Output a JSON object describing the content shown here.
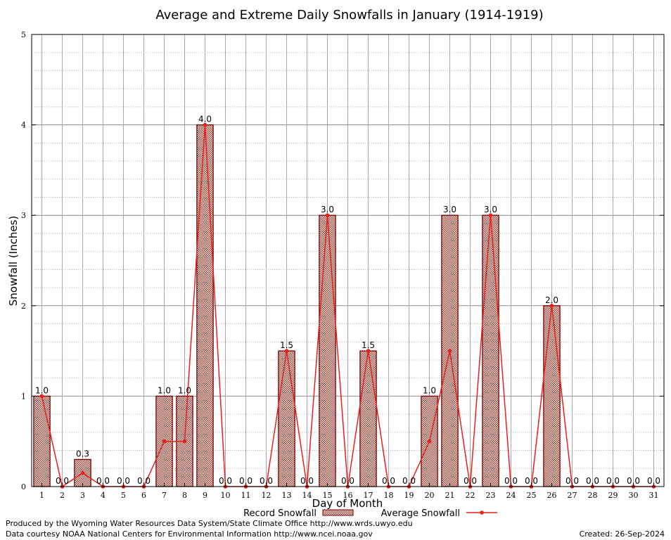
{
  "chart_data": {
    "type": "bar",
    "title": "Average and Extreme Daily Snowfalls in January (1914-1919)",
    "xlabel": "Day of Month",
    "ylabel": "Snowfall (Inches)",
    "ylim": [
      0,
      5
    ],
    "yticks": [
      0,
      1,
      2,
      3,
      4,
      5
    ],
    "categories": [
      "1",
      "2",
      "3",
      "4",
      "5",
      "6",
      "7",
      "8",
      "9",
      "10",
      "11",
      "12",
      "13",
      "14",
      "15",
      "16",
      "17",
      "18",
      "19",
      "20",
      "21",
      "22",
      "23",
      "24",
      "25",
      "26",
      "27",
      "28",
      "29",
      "30",
      "31"
    ],
    "series": [
      {
        "name": "Record Snowfall",
        "type": "bar",
        "values": [
          1.0,
          0.0,
          0.3,
          0.0,
          0.0,
          0.0,
          1.0,
          1.0,
          4.0,
          0.0,
          0.0,
          0.0,
          1.5,
          0.0,
          3.0,
          0.0,
          1.5,
          0.0,
          0.0,
          1.0,
          3.0,
          0.0,
          3.0,
          0.0,
          0.0,
          2.0,
          0.0,
          0.0,
          0.0,
          0.0,
          0.0
        ],
        "labels": [
          "1.0",
          "0.0",
          "0.3",
          "0.0",
          "0.0",
          "0.0",
          "1.0",
          "1.0",
          "4.0",
          "0.0",
          "0.0",
          "0.0",
          "1.5",
          "0.0",
          "3.0",
          "0.0",
          "1.5",
          "0.0",
          "0.0",
          "1.0",
          "3.0",
          "0.0",
          "3.0",
          "0.0",
          "0.0",
          "2.0",
          "0.0",
          "0.0",
          "0.0",
          "0.0",
          "0.0"
        ]
      },
      {
        "name": "Average Snowfall",
        "type": "line",
        "values": [
          1.0,
          0.0,
          0.15,
          0.0,
          0.0,
          0.0,
          0.5,
          0.5,
          4.0,
          0.0,
          0.0,
          0.0,
          1.5,
          0.0,
          3.0,
          0.0,
          1.5,
          0.0,
          0.0,
          0.5,
          1.5,
          0.0,
          3.0,
          0.0,
          0.0,
          2.0,
          0.0,
          0.0,
          0.0,
          0.0,
          0.0
        ]
      }
    ],
    "grid": true,
    "legend": "bottom",
    "colors": {
      "bar_fill": "#c9a8a0",
      "bar_stroke": "#7a0000",
      "line": "#e8201c"
    }
  },
  "footer": {
    "produced_by": "Produced by the Wyoming Water Resources Data System/State Climate Office http://www.wrds.uwyo.edu",
    "courtesy": "Data courtesy NOAA National Centers for Environmental Information http://www.ncei.noaa.gov",
    "created": "Created:  26-Sep-2024"
  }
}
